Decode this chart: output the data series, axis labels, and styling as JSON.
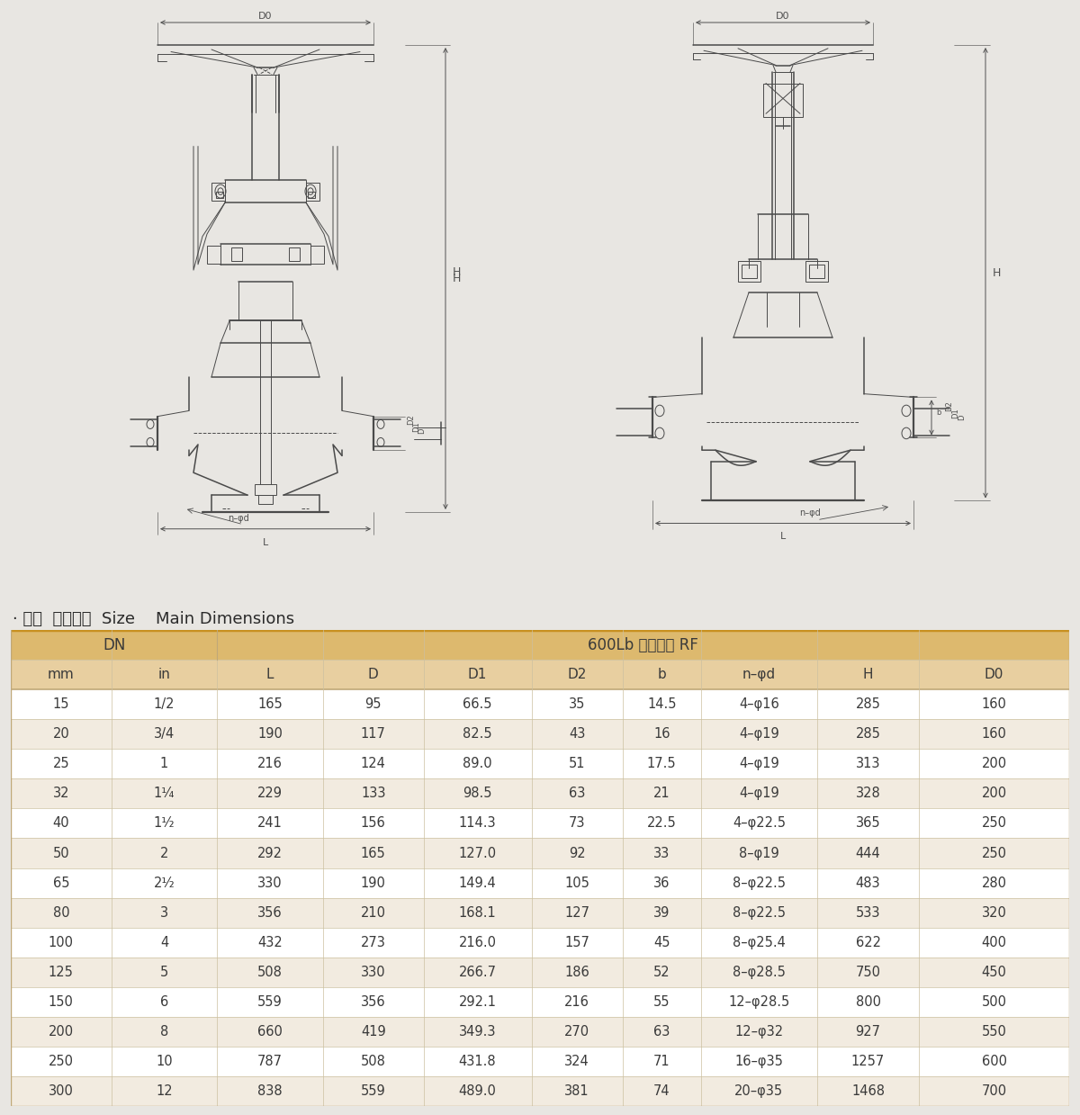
{
  "title_text": "· 规格  主要尺寸  Size    Main Dimensions",
  "header1_left": "DN",
  "header1_right": "600Lb 凸面法兰 RF",
  "col_headers": [
    "mm",
    "in",
    "L",
    "D",
    "D1",
    "D2",
    "b",
    "n–φd",
    "H",
    "D0"
  ],
  "rows": [
    [
      "15",
      "1/2",
      "165",
      "95",
      "66.5",
      "35",
      "14.5",
      "4–φ16",
      "285",
      "160"
    ],
    [
      "20",
      "3/4",
      "190",
      "117",
      "82.5",
      "43",
      "16",
      "4–φ19",
      "285",
      "160"
    ],
    [
      "25",
      "1",
      "216",
      "124",
      "89.0",
      "51",
      "17.5",
      "4–φ19",
      "313",
      "200"
    ],
    [
      "32",
      "1¹⁄₄",
      "229",
      "133",
      "98.5",
      "63",
      "21",
      "4–φ19",
      "328",
      "200"
    ],
    [
      "40",
      "1¹⁄₂",
      "241",
      "156",
      "114.3",
      "73",
      "22.5",
      "4–φ22.5",
      "365",
      "250"
    ],
    [
      "50",
      "2",
      "292",
      "165",
      "127.0",
      "92",
      "33",
      "8–φ19",
      "444",
      "250"
    ],
    [
      "65",
      "2¹⁄₂",
      "330",
      "190",
      "149.4",
      "105",
      "36",
      "8–φ22.5",
      "483",
      "280"
    ],
    [
      "80",
      "3",
      "356",
      "210",
      "168.1",
      "127",
      "39",
      "8–φ22.5",
      "533",
      "320"
    ],
    [
      "100",
      "4",
      "432",
      "273",
      "216.0",
      "157",
      "45",
      "8–φ25.4",
      "622",
      "400"
    ],
    [
      "125",
      "5",
      "508",
      "330",
      "266.7",
      "186",
      "52",
      "8–φ28.5",
      "750",
      "450"
    ],
    [
      "150",
      "6",
      "559",
      "356",
      "292.1",
      "216",
      "55",
      "12–φ28.5",
      "800",
      "500"
    ],
    [
      "200",
      "8",
      "660",
      "419",
      "349.3",
      "270",
      "63",
      "12–φ32",
      "927",
      "550"
    ],
    [
      "250",
      "10",
      "787",
      "508",
      "431.8",
      "324",
      "71",
      "16–φ35",
      "1257",
      "600"
    ],
    [
      "300",
      "12",
      "838",
      "559",
      "489.0",
      "381",
      "74",
      "20–φ35",
      "1468",
      "700"
    ]
  ],
  "page_bg": "#e8e6e2",
  "drawing_bg": "#e8e6e2",
  "table_bg": "#f0e8d8",
  "header_bg": "#ddb96e",
  "subheader_bg": "#e8cfA0",
  "row_bg_odd": "#ffffff",
  "row_bg_even": "#f2ebe0",
  "border_top_color": "#c89020",
  "border_color": "#c0a878",
  "grid_color": "#ccc0a0",
  "text_color": "#3a3a3a",
  "title_color": "#2a2a2a",
  "draw_color": "#4a4a4a",
  "dim_color": "#505050"
}
